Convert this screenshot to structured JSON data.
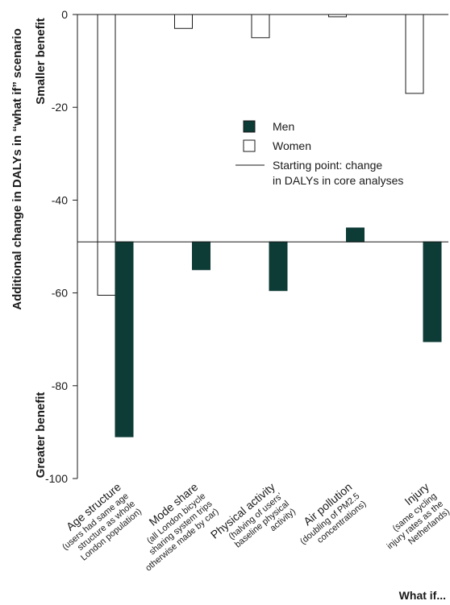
{
  "chart_data": {
    "type": "bar",
    "ylabel": "Additional change in DALYs in “what if” scenario",
    "y_top_annotation": "Smaller benefit",
    "y_bottom_annotation": "Greater benefit",
    "xlabel": "What if...",
    "ylim": [
      -100,
      0
    ],
    "yticks": [
      0,
      -20,
      -40,
      -60,
      -80,
      -100
    ],
    "baseline": -49,
    "categories": [
      {
        "label": "Age structure",
        "sub": [
          "(users had same age",
          "structure as whole",
          "London population)"
        ]
      },
      {
        "label": "Mode share",
        "sub": [
          "(all London bicycle",
          "sharing system trips",
          "otherwise made by car)"
        ]
      },
      {
        "label": "Physical activity",
        "sub": [
          "(halving of users’",
          "baseline physical",
          "activity)"
        ]
      },
      {
        "label": "Air pollution",
        "sub": [
          "(doubling of PM2.5",
          "concentrations)"
        ]
      },
      {
        "label": "Injury",
        "sub": [
          "(same cycling",
          "injury rates as the",
          "Netherlands)"
        ]
      }
    ],
    "series": [
      {
        "name": "Men",
        "color": "#0d3b36",
        "values": [
          -91,
          -55,
          -59.5,
          -46,
          -70.5
        ]
      },
      {
        "name": "Women",
        "color": "#ffffff",
        "values": [
          -60.5,
          -3,
          -5,
          -0.5,
          -17
        ]
      }
    ],
    "legend": {
      "placement": "top-right",
      "items": [
        "Men",
        "Women"
      ],
      "line_label": [
        "Starting point: change",
        "in DALYs in core analyses"
      ]
    }
  }
}
